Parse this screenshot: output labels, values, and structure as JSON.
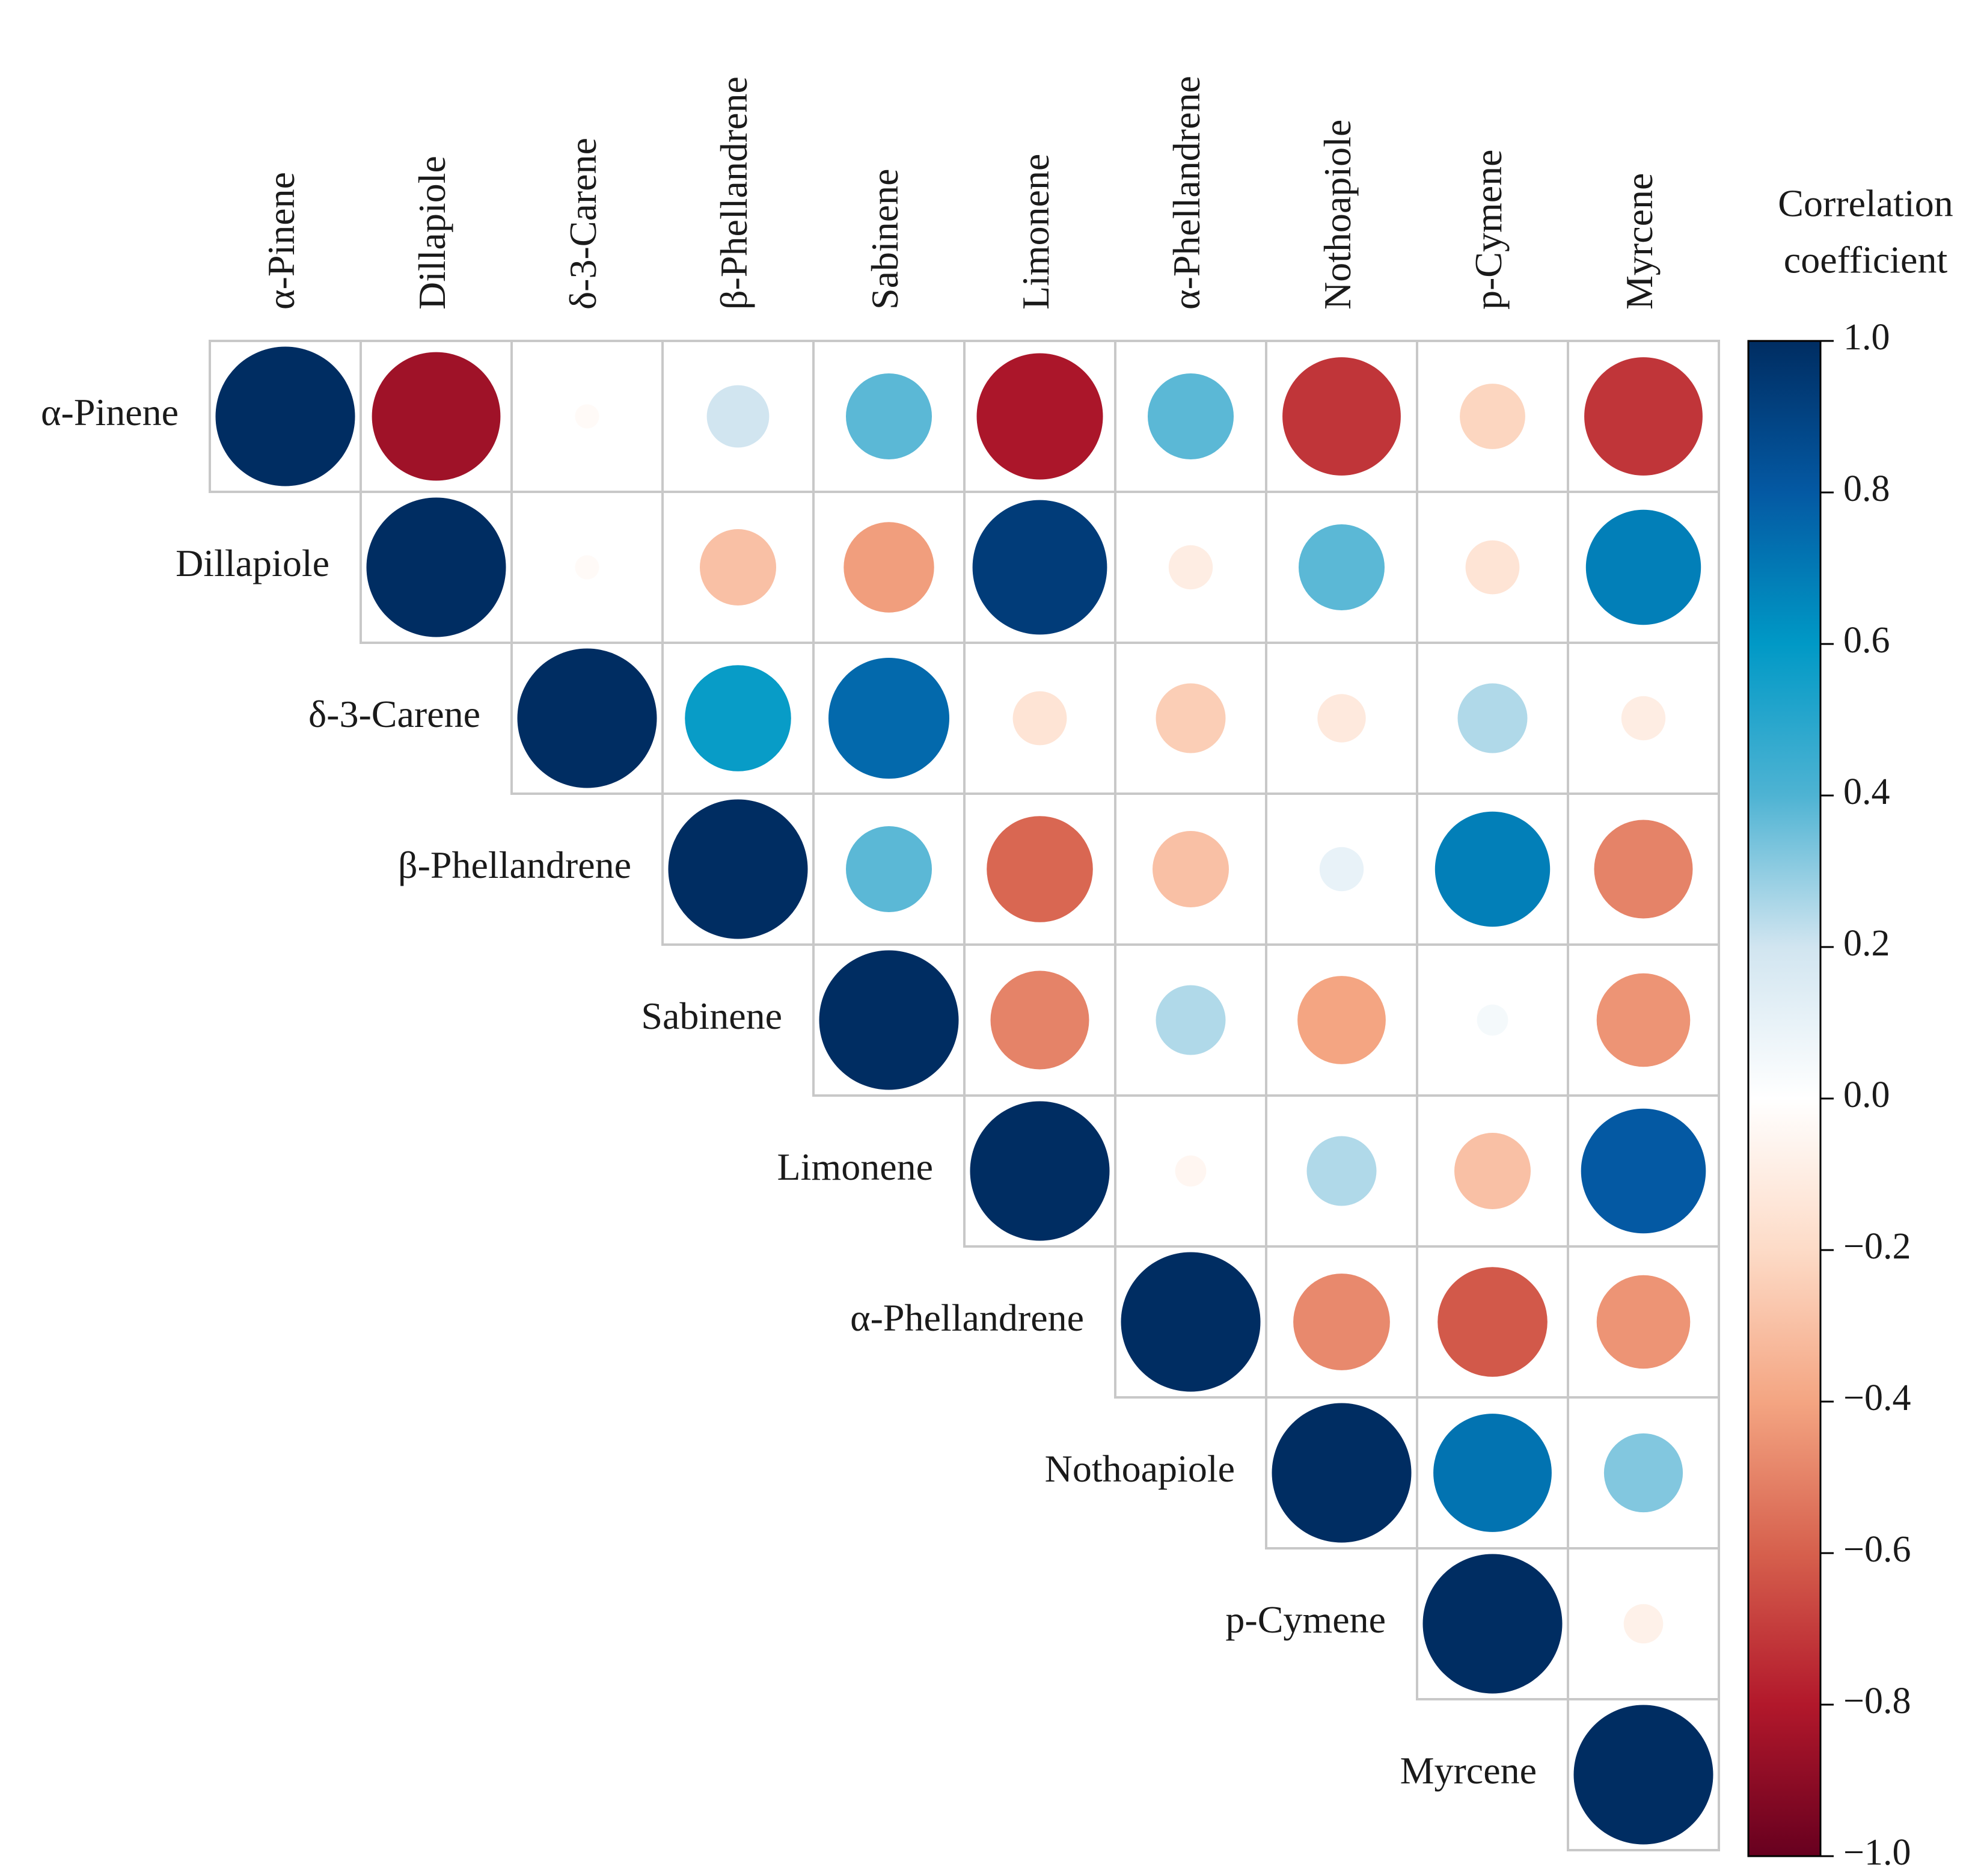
{
  "chart_data": {
    "type": "heatmap",
    "subtype": "correlogram-upper-triangle-circles",
    "variables": [
      "α-Pinene",
      "Dillapiole",
      "δ-3-Carene",
      "β-Phellandrene",
      "Sabinene",
      "Limonene",
      "α-Phellandrene",
      "Nothoapiole",
      "p-Cymene",
      "Myrcene"
    ],
    "matrix": [
      [
        1.0,
        -0.85,
        -0.03,
        0.2,
        0.38,
        -0.82,
        0.38,
        -0.72,
        -0.22,
        -0.72
      ],
      [
        -0.85,
        1.0,
        -0.03,
        -0.3,
        -0.42,
        0.93,
        -0.1,
        0.38,
        -0.15,
        0.68
      ],
      [
        -0.03,
        -0.03,
        1.0,
        0.58,
        0.75,
        -0.15,
        -0.25,
        -0.12,
        0.25,
        -0.1
      ],
      [
        0.2,
        -0.3,
        0.58,
        1.0,
        0.38,
        -0.58,
        -0.3,
        0.1,
        0.68,
        -0.5
      ],
      [
        0.38,
        -0.42,
        0.75,
        0.38,
        1.0,
        -0.5,
        0.25,
        -0.4,
        0.05,
        -0.45
      ],
      [
        -0.82,
        0.93,
        -0.15,
        -0.58,
        -0.5,
        1.0,
        -0.05,
        0.25,
        -0.3,
        0.8
      ],
      [
        0.38,
        -0.1,
        -0.25,
        -0.3,
        0.25,
        -0.05,
        1.0,
        -0.48,
        -0.62,
        -0.45
      ],
      [
        -0.72,
        0.38,
        -0.12,
        0.1,
        -0.4,
        0.25,
        -0.48,
        1.0,
        0.72,
        0.32
      ],
      [
        -0.22,
        -0.15,
        0.25,
        0.68,
        0.05,
        -0.3,
        -0.62,
        0.72,
        1.0,
        -0.08
      ],
      [
        -0.72,
        0.68,
        -0.1,
        -0.5,
        -0.45,
        0.8,
        -0.45,
        0.32,
        -0.08,
        1.0
      ]
    ],
    "colorbar": {
      "title_lines": [
        "Correlation",
        "coefficient"
      ],
      "range": [
        -1.0,
        1.0
      ],
      "tick_values": [
        1.0,
        0.8,
        0.6,
        0.4,
        0.2,
        0.0,
        -0.2,
        -0.4,
        -0.6,
        -0.8,
        -1.0
      ],
      "tick_labels": [
        "1.0",
        "0.8",
        "0.6",
        "0.4",
        "0.2",
        "0.0",
        "−0.2",
        "−0.4",
        "−0.6",
        "−0.8",
        "−1.0"
      ],
      "placement": "right",
      "stops": [
        {
          "value": -1.0,
          "color": "#67001f"
        },
        {
          "value": -0.8,
          "color": "#b2182b"
        },
        {
          "value": -0.6,
          "color": "#d6604d"
        },
        {
          "value": -0.4,
          "color": "#f4a582"
        },
        {
          "value": -0.2,
          "color": "#fddbc7"
        },
        {
          "value": 0.0,
          "color": "#ffffff"
        },
        {
          "value": 0.2,
          "color": "#d1e5f0"
        },
        {
          "value": 0.4,
          "color": "#4eb3d3"
        },
        {
          "value": 0.6,
          "color": "#0099c6"
        },
        {
          "value": 0.8,
          "color": "#0459a3"
        },
        {
          "value": 1.0,
          "color": "#002d62"
        }
      ]
    }
  }
}
